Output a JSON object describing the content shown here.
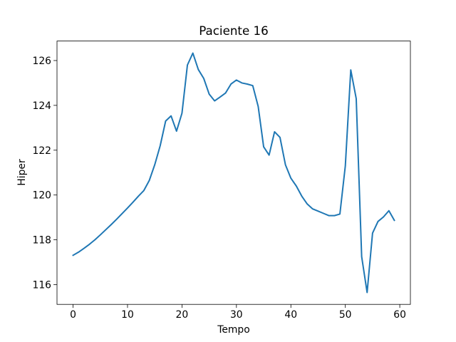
{
  "chart_data": {
    "type": "line",
    "title": "Paciente 16",
    "xlabel": "Tempo",
    "ylabel": "Hiper",
    "x": [
      0,
      1,
      2,
      3,
      4,
      5,
      6,
      7,
      8,
      9,
      10,
      11,
      12,
      13,
      14,
      15,
      16,
      17,
      18,
      19,
      20,
      21,
      22,
      23,
      24,
      25,
      26,
      27,
      28,
      29,
      30,
      31,
      32,
      33,
      34,
      35,
      36,
      37,
      38,
      39,
      40,
      41,
      42,
      43,
      44,
      45,
      46,
      47,
      48,
      49,
      50,
      51,
      52,
      53,
      54,
      55,
      56,
      57,
      58,
      59
    ],
    "values": [
      117.31,
      117.45,
      117.62,
      117.8,
      118.0,
      118.22,
      118.45,
      118.68,
      118.92,
      119.17,
      119.42,
      119.68,
      119.95,
      120.2,
      120.65,
      121.35,
      122.2,
      123.3,
      123.53,
      122.85,
      123.65,
      125.8,
      126.33,
      125.6,
      125.2,
      124.5,
      124.2,
      124.37,
      124.55,
      124.95,
      125.13,
      125.0,
      124.95,
      124.88,
      123.95,
      122.15,
      121.78,
      122.82,
      122.57,
      121.35,
      120.75,
      120.4,
      119.95,
      119.6,
      119.38,
      119.28,
      119.18,
      119.08,
      119.08,
      119.15,
      121.3,
      125.58,
      124.3,
      117.25,
      115.65,
      118.3,
      118.82,
      119.02,
      119.3,
      118.87
    ],
    "color": "#1f77b4",
    "xlim": [
      -2.95,
      61.95
    ],
    "xticks": [
      0,
      10,
      20,
      30,
      40,
      50,
      60
    ],
    "ylim": [
      115.12,
      126.87
    ],
    "yticks": [
      116,
      118,
      120,
      122,
      124,
      126
    ]
  }
}
